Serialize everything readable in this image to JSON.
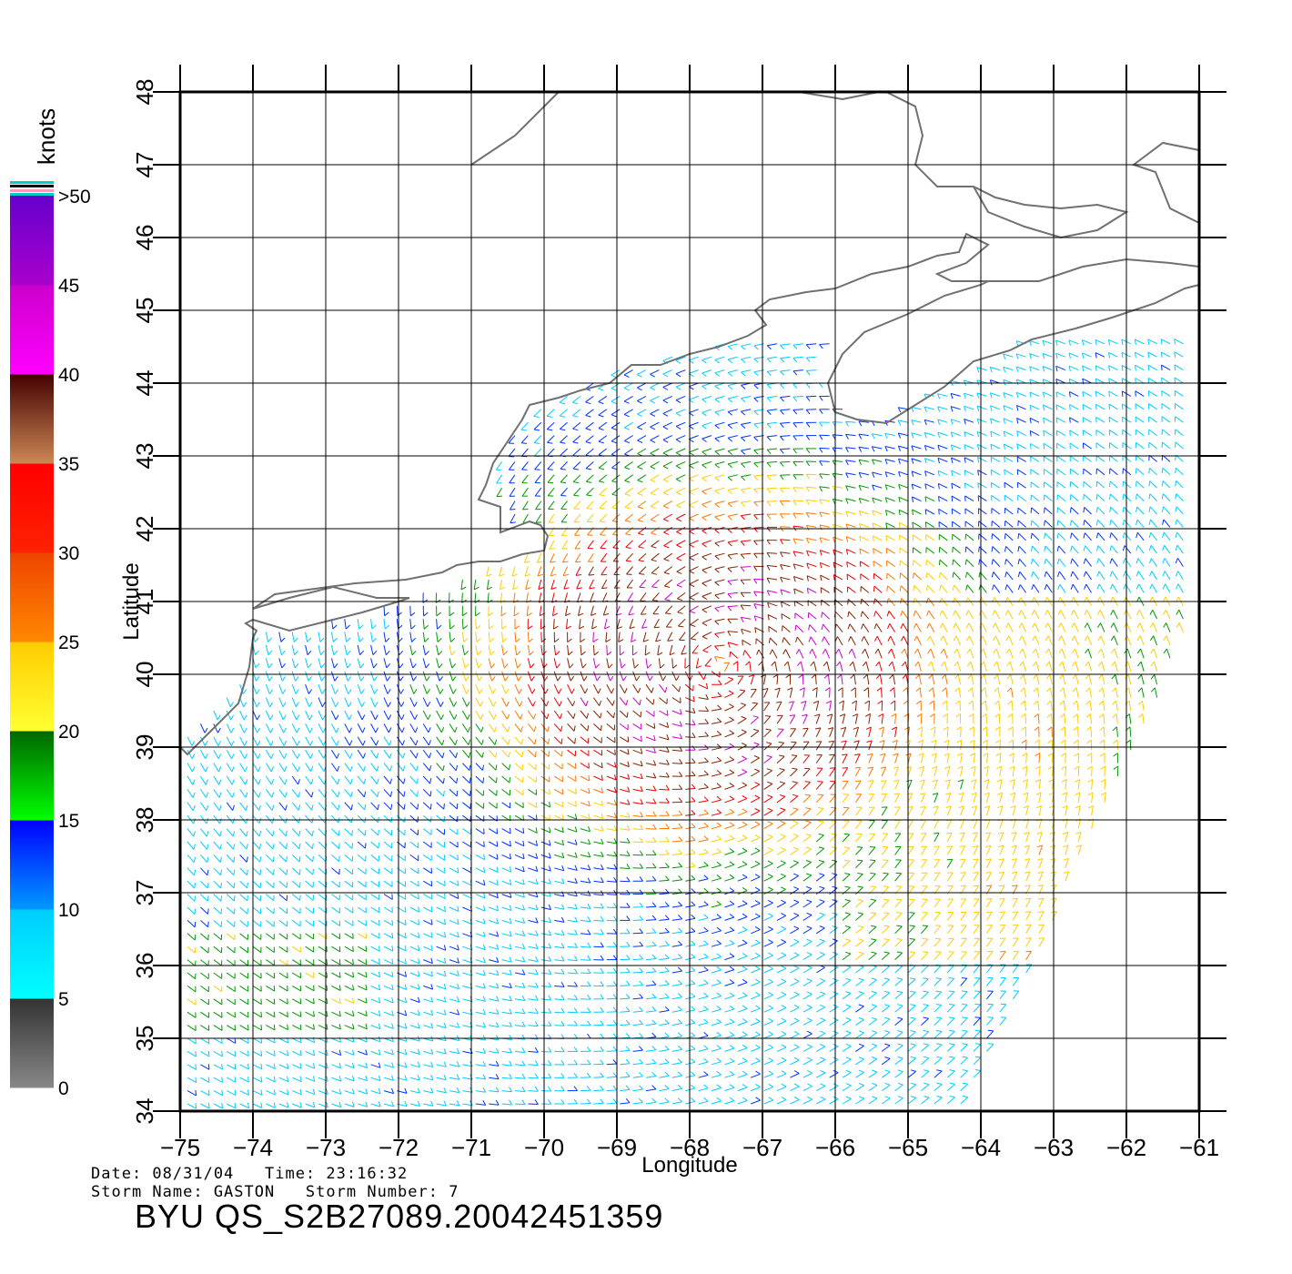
{
  "legend": {
    "unit_label": "knots",
    "bands": [
      {
        "from": 0,
        "to": 5,
        "top_color": "#333333",
        "bottom_color": "#888888"
      },
      {
        "from": 5,
        "to": 10,
        "top_color": "#00ccff",
        "bottom_color": "#00ffff"
      },
      {
        "from": 10,
        "to": 15,
        "top_color": "#0000ff",
        "bottom_color": "#0099ff"
      },
      {
        "from": 15,
        "to": 20,
        "top_color": "#006600",
        "bottom_color": "#00ff00"
      },
      {
        "from": 20,
        "to": 25,
        "top_color": "#ffcc00",
        "bottom_color": "#ffff33"
      },
      {
        "from": 25,
        "to": 30,
        "top_color": "#ee4400",
        "bottom_color": "#ff8800"
      },
      {
        "from": 30,
        "to": 35,
        "top_color": "#ff0000",
        "bottom_color": "#ff2200"
      },
      {
        "from": 35,
        "to": 40,
        "top_color": "#440000",
        "bottom_color": "#cc8855"
      },
      {
        "from": 40,
        "to": 45,
        "top_color": "#cc00cc",
        "bottom_color": "#ff00ff"
      },
      {
        "from": 45,
        "to": 50,
        "top_color": "#6600cc",
        "bottom_color": "#aa00cc"
      }
    ],
    "tick_labels": [
      "0",
      "5",
      "10",
      "15",
      "20",
      "25",
      "30",
      "35",
      "40",
      "45",
      ">50"
    ]
  },
  "axes": {
    "x_label": "Longitude",
    "y_label": "Latitude",
    "lon_ticks": [
      "−75",
      "−74",
      "−73",
      "−72",
      "−71",
      "−70",
      "−69",
      "−68",
      "−67",
      "−66",
      "−65",
      "−64",
      "−63",
      "−62",
      "−61"
    ],
    "lat_ticks": [
      "34",
      "35",
      "36",
      "37",
      "38",
      "39",
      "40",
      "41",
      "42",
      "43",
      "44",
      "45",
      "46",
      "47",
      "48"
    ],
    "lon_range": [
      -75,
      -61
    ],
    "lat_range": [
      34,
      48
    ]
  },
  "storm_center": {
    "lon": -67.6,
    "lat": 40.1
  },
  "footer": {
    "line1": "Date: 08/31/04   Time: 23:16:32",
    "line2": "Storm Name: GASTON   Storm Number: 7",
    "title": "BYU QS_S2B27089.20042451359"
  }
}
